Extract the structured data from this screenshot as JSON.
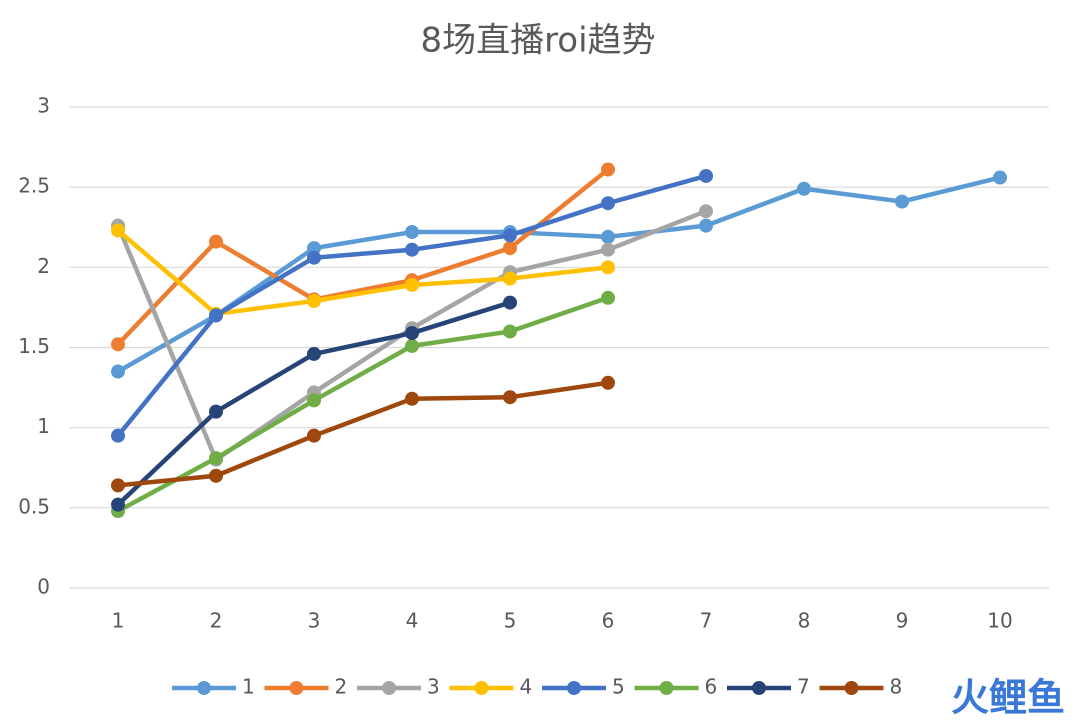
{
  "chart_data": {
    "type": "line",
    "title": "8场直播roi趋势",
    "categories": [
      "1",
      "2",
      "3",
      "4",
      "5",
      "6",
      "7",
      "8",
      "9",
      "10"
    ],
    "series": [
      {
        "name": "1",
        "color": "#5b9bd5",
        "values": [
          1.35,
          1.7,
          2.12,
          2.22,
          2.22,
          2.19,
          2.26,
          2.49,
          2.41,
          2.56
        ]
      },
      {
        "name": "2",
        "color": "#ed7d31",
        "values": [
          1.52,
          2.16,
          1.8,
          1.92,
          2.12,
          2.61,
          null,
          null,
          null,
          null
        ]
      },
      {
        "name": "3",
        "color": "#a5a5a5",
        "values": [
          2.26,
          0.8,
          1.22,
          1.62,
          1.97,
          2.11,
          2.35,
          null,
          null,
          null
        ]
      },
      {
        "name": "4",
        "color": "#ffc000",
        "values": [
          2.23,
          1.71,
          1.79,
          1.89,
          1.93,
          2.0,
          null,
          null,
          null,
          null
        ]
      },
      {
        "name": "5",
        "color": "#4472c4",
        "values": [
          0.95,
          1.7,
          2.06,
          2.11,
          2.2,
          2.4,
          2.57,
          null,
          null,
          null
        ]
      },
      {
        "name": "6",
        "color": "#70ad47",
        "values": [
          0.48,
          0.81,
          1.17,
          1.51,
          1.6,
          1.81,
          null,
          null,
          null,
          null
        ]
      },
      {
        "name": "7",
        "color": "#264478",
        "values": [
          0.52,
          1.1,
          1.46,
          1.59,
          1.78,
          null,
          null,
          null,
          null,
          null
        ]
      },
      {
        "name": "8",
        "color": "#9e480e",
        "values": [
          0.64,
          0.7,
          0.95,
          1.18,
          1.19,
          1.28,
          null,
          null,
          null,
          null
        ]
      }
    ],
    "ylim": [
      0,
      3
    ],
    "yticks": [
      0,
      0.5,
      1,
      1.5,
      2,
      2.5,
      3
    ],
    "grid": true,
    "legend": "bottom",
    "watermark": "火鲤鱼"
  }
}
